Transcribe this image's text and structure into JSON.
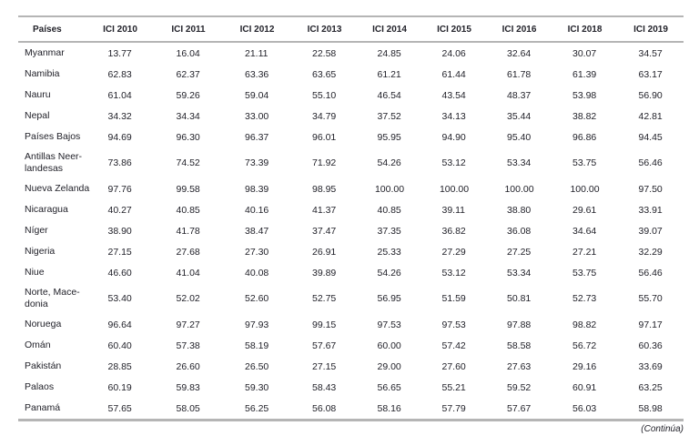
{
  "table": {
    "columns": [
      "Países",
      "ICI 2010",
      "ICI 2011",
      "ICI 2012",
      "ICI 2013",
      "ICI 2014",
      "ICI 2015",
      "ICI 2016",
      "ICI 2018",
      "ICI 2019"
    ],
    "rows": [
      {
        "lines": [
          "Myanmar"
        ],
        "values": [
          "13.77",
          "16.04",
          "21.11",
          "22.58",
          "24.85",
          "24.06",
          "32.64",
          "30.07",
          "34.57"
        ]
      },
      {
        "lines": [
          "Namibia"
        ],
        "values": [
          "62.83",
          "62.37",
          "63.36",
          "63.65",
          "61.21",
          "61.44",
          "61.78",
          "61.39",
          "63.17"
        ]
      },
      {
        "lines": [
          "Nauru"
        ],
        "values": [
          "61.04",
          "59.26",
          "59.04",
          "55.10",
          "46.54",
          "43.54",
          "48.37",
          "53.98",
          "56.90"
        ]
      },
      {
        "lines": [
          "Nepal"
        ],
        "values": [
          "34.32",
          "34.34",
          "33.00",
          "34.79",
          "37.52",
          "34.13",
          "35.44",
          "38.82",
          "42.81"
        ]
      },
      {
        "lines": [
          "Países Bajos"
        ],
        "values": [
          "94.69",
          "96.30",
          "96.37",
          "96.01",
          "95.95",
          "94.90",
          "95.40",
          "96.86",
          "94.45"
        ]
      },
      {
        "lines": [
          "Antillas Neer-",
          "landesas"
        ],
        "values": [
          "73.86",
          "74.52",
          "73.39",
          "71.92",
          "54.26",
          "53.12",
          "53.34",
          "53.75",
          "56.46"
        ]
      },
      {
        "lines": [
          "Nueva Zelanda"
        ],
        "values": [
          "97.76",
          "99.58",
          "98.39",
          "98.95",
          "100.00",
          "100.00",
          "100.00",
          "100.00",
          "97.50"
        ]
      },
      {
        "lines": [
          "Nicaragua"
        ],
        "values": [
          "40.27",
          "40.85",
          "40.16",
          "41.37",
          "40.85",
          "39.11",
          "38.80",
          "29.61",
          "33.91"
        ]
      },
      {
        "lines": [
          "Níger"
        ],
        "values": [
          "38.90",
          "41.78",
          "38.47",
          "37.47",
          "37.35",
          "36.82",
          "36.08",
          "34.64",
          "39.07"
        ]
      },
      {
        "lines": [
          "Nigeria"
        ],
        "values": [
          "27.15",
          "27.68",
          "27.30",
          "26.91",
          "25.33",
          "27.29",
          "27.25",
          "27.21",
          "32.29"
        ]
      },
      {
        "lines": [
          "Niue"
        ],
        "values": [
          "46.60",
          "41.04",
          "40.08",
          "39.89",
          "54.26",
          "53.12",
          "53.34",
          "53.75",
          "56.46"
        ]
      },
      {
        "lines": [
          "Norte, Mace-",
          "donia"
        ],
        "values": [
          "53.40",
          "52.02",
          "52.60",
          "52.75",
          "56.95",
          "51.59",
          "50.81",
          "52.73",
          "55.70"
        ]
      },
      {
        "lines": [
          "Noruega"
        ],
        "values": [
          "96.64",
          "97.27",
          "97.93",
          "99.15",
          "97.53",
          "97.53",
          "97.88",
          "98.82",
          "97.17"
        ]
      },
      {
        "lines": [
          "Omán"
        ],
        "values": [
          "60.40",
          "57.38",
          "58.19",
          "57.67",
          "60.00",
          "57.42",
          "58.58",
          "56.72",
          "60.36"
        ]
      },
      {
        "lines": [
          "Pakistán"
        ],
        "values": [
          "28.85",
          "26.60",
          "26.50",
          "27.15",
          "29.00",
          "27.60",
          "27.63",
          "29.16",
          "33.69"
        ]
      },
      {
        "lines": [
          "Palaos"
        ],
        "values": [
          "60.19",
          "59.83",
          "59.30",
          "58.43",
          "56.65",
          "55.21",
          "59.52",
          "60.91",
          "63.25"
        ]
      },
      {
        "lines": [
          "Panamá"
        ],
        "values": [
          "57.65",
          "58.05",
          "56.25",
          "56.08",
          "58.16",
          "57.79",
          "57.67",
          "56.03",
          "58.98"
        ]
      }
    ],
    "footer_note": "(Continúa)"
  },
  "colors": {
    "rule": "#b5b5b5",
    "text": "#22222a"
  }
}
